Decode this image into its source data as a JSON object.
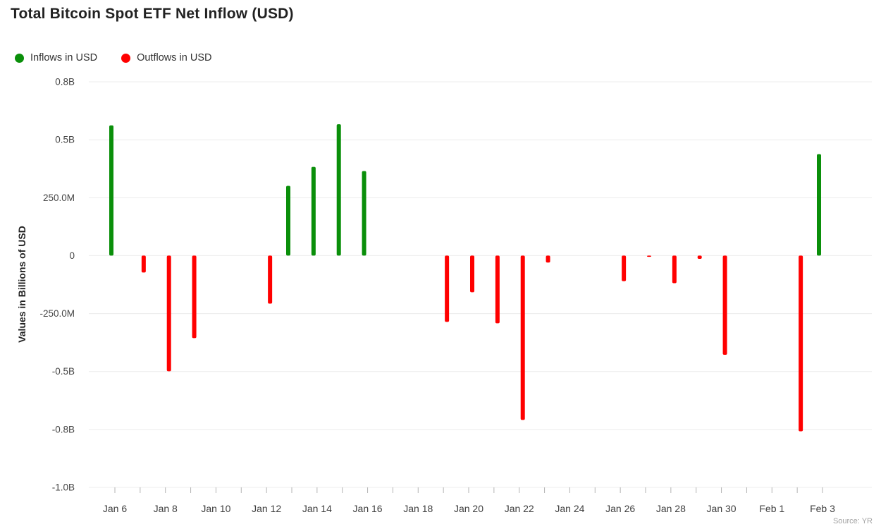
{
  "chart_data": {
    "type": "bar",
    "title": "Total Bitcoin Spot ETF Net Inflow (USD)",
    "ylabel": "Values in Billions of USD",
    "source": "Source: YR",
    "unit": "billions of USD",
    "grid": "horizontal",
    "legend_position": "top-left",
    "ylim": [
      -1.0,
      0.75
    ],
    "x_label_every": 2,
    "categories": [
      "Jan 6",
      "Jan 7",
      "Jan 8",
      "Jan 9",
      "Jan 10",
      "Jan 11",
      "Jan 12",
      "Jan 13",
      "Jan 14",
      "Jan 15",
      "Jan 16",
      "Jan 17",
      "Jan 18",
      "Jan 19",
      "Jan 20",
      "Jan 21",
      "Jan 22",
      "Jan 23",
      "Jan 24",
      "Jan 25",
      "Jan 26",
      "Jan 27",
      "Jan 28",
      "Jan 29",
      "Jan 30",
      "Jan 31",
      "Feb 1",
      "Feb 2",
      "Feb 3"
    ],
    "series": [
      {
        "name": "Inflows in USD",
        "color": "#0a8f0a",
        "values": [
          0.562,
          0,
          0,
          0,
          0,
          0,
          0,
          0.301,
          0.383,
          0.567,
          0.365,
          0,
          0,
          0,
          0,
          0,
          0,
          0,
          0,
          0,
          0,
          0,
          0,
          0,
          0,
          0,
          0,
          0,
          0.438
        ]
      },
      {
        "name": "Outflows in USD",
        "color": "#ff0000",
        "values": [
          0,
          -0.073,
          -0.499,
          -0.356,
          0,
          0,
          -0.207,
          0,
          0,
          0,
          0,
          0,
          0,
          -0.286,
          -0.158,
          -0.292,
          -0.709,
          -0.03,
          0,
          0,
          -0.11,
          -0.005,
          -0.119,
          -0.014,
          -0.428,
          0,
          0,
          -0.758,
          0
        ]
      }
    ],
    "yticks": [
      {
        "value": 0.75,
        "label": "0.8B"
      },
      {
        "value": 0.5,
        "label": "0.5B"
      },
      {
        "value": 0.25,
        "label": "250.0M"
      },
      {
        "value": 0,
        "label": "0"
      },
      {
        "value": -0.25,
        "label": "-250.0M"
      },
      {
        "value": -0.5,
        "label": "-0.5B"
      },
      {
        "value": -0.75,
        "label": "-0.8B"
      },
      {
        "value": -1.0,
        "label": "-1.0B"
      }
    ]
  }
}
